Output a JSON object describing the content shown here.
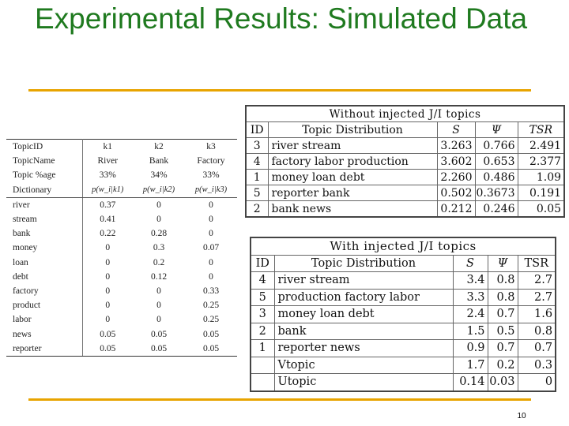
{
  "slide": {
    "title": "Experimental Results: Simulated Data",
    "page_number": "10"
  },
  "topic_table": {
    "rows": [
      [
        "TopicID",
        "k1",
        "k2",
        "k3"
      ],
      [
        "TopicName",
        "River",
        "Bank",
        "Factory"
      ],
      [
        "Topic %age",
        "33%",
        "34%",
        "33%"
      ],
      [
        "Dictionary",
        "p(w_i|k1)",
        "p(w_i|k2)",
        "p(w_i|k3)"
      ],
      [
        "river",
        "0.37",
        "0",
        "0"
      ],
      [
        "stream",
        "0.41",
        "0",
        "0"
      ],
      [
        "bank",
        "0.22",
        "0.28",
        "0"
      ],
      [
        "money",
        "0",
        "0.3",
        "0.07"
      ],
      [
        "loan",
        "0",
        "0.2",
        "0"
      ],
      [
        "debt",
        "0",
        "0.12",
        "0"
      ],
      [
        "factory",
        "0",
        "0",
        "0.33"
      ],
      [
        "product",
        "0",
        "0",
        "0.25"
      ],
      [
        "labor",
        "0",
        "0",
        "0.25"
      ],
      [
        "news",
        "0.05",
        "0.05",
        "0.05"
      ],
      [
        "reporter",
        "0.05",
        "0.05",
        "0.05"
      ]
    ]
  },
  "without_table": {
    "caption": "Without injected J/I topics",
    "headers": [
      "ID",
      "Topic Distribution",
      "S",
      "Ψ",
      "TSR"
    ],
    "rows": [
      [
        "3",
        "river stream",
        "3.263",
        "0.766",
        "2.491"
      ],
      [
        "4",
        "factory labor production",
        "3.602",
        "0.653",
        "2.377"
      ],
      [
        "1",
        "money loan debt",
        "2.260",
        "0.486",
        "1.09"
      ],
      [
        "5",
        "reporter bank",
        "0.502",
        "0.3673",
        "0.191"
      ],
      [
        "2",
        "bank news",
        "0.212",
        "0.246",
        "0.05"
      ]
    ]
  },
  "with_table": {
    "caption": "With injected J/I topics",
    "headers": [
      "ID",
      "Topic Distribution",
      "S",
      "Ψ",
      "TSR"
    ],
    "rows": [
      [
        "4",
        "river stream",
        "3.4",
        "0.8",
        "2.7"
      ],
      [
        "5",
        "production factory labor",
        "3.3",
        "0.8",
        "2.7"
      ],
      [
        "3",
        "money loan debt",
        "2.4",
        "0.7",
        "1.6"
      ],
      [
        "2",
        "bank",
        "1.5",
        "0.5",
        "0.8"
      ],
      [
        "1",
        "reporter news",
        "0.9",
        "0.7",
        "0.7"
      ],
      [
        "",
        "Vtopic",
        "1.7",
        "0.2",
        "0.3"
      ],
      [
        "",
        "Utopic",
        "0.14",
        "0.03",
        "0"
      ]
    ]
  }
}
